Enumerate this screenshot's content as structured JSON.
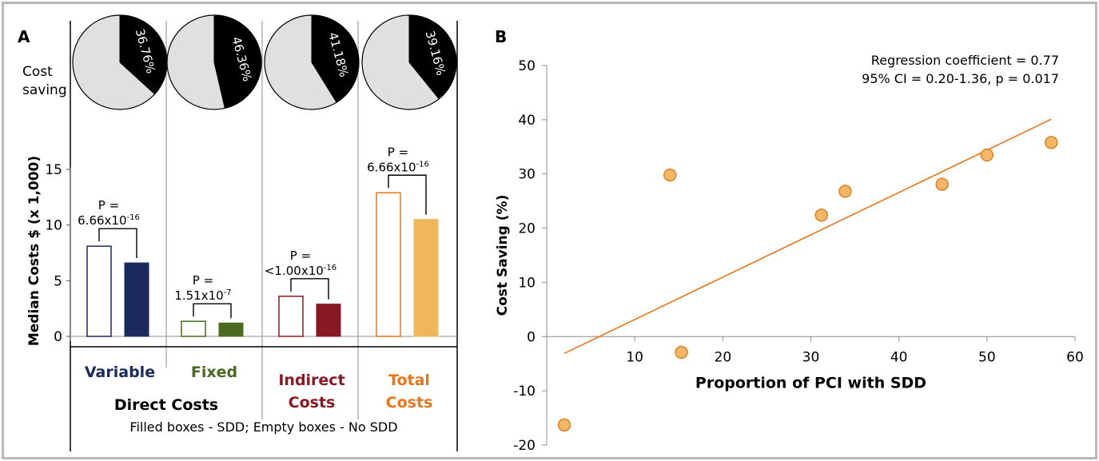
{
  "colors": {
    "variable": "#1b2a5e",
    "fixed": "#4a6b1f",
    "indirect": "#8a1822",
    "total": "#f0b65b",
    "total_label": "#e8751a",
    "pie_light": "#e0e0e0",
    "pie_dark": "#000000",
    "scatter_fill": "#f5b763",
    "scatter_stroke": "#d8832a",
    "trend": "#e8751a",
    "grid": "#8c8c8c"
  },
  "panel_a": {
    "letter": "A",
    "pie_row_label": [
      "Cost",
      "saving"
    ],
    "ylabel": "Median Costs $ (x 1,000)",
    "footnote": "Filled boxes - SDD; Empty boxes - No SDD",
    "direct_costs": "Direct Costs"
  },
  "panel_b": {
    "letter": "B",
    "annotation_line1": "Regression coefficient = 0.77",
    "annotation_line2": "95% CI = 0.20-1.36, p = 0.017"
  },
  "chart_data": [
    {
      "type": "bar",
      "panel": "A",
      "ylabel": "Median Costs $ (x 1,000)",
      "ylim": [
        0,
        15
      ],
      "yticks": [
        0,
        5,
        10,
        15
      ],
      "groups": [
        {
          "label": "Variable",
          "no_sdd": 8.1,
          "sdd": 6.6,
          "p_line1": "P =",
          "p_line2": "6.66x10",
          "p_exp": "-16",
          "pie_pct": 36.76,
          "pie_label": "36.76%",
          "color_key": "variable",
          "empty_outline": "#1b2a5e"
        },
        {
          "label": "Fixed",
          "no_sdd": 1.35,
          "sdd": 1.2,
          "p_line1": "P =",
          "p_line2": "1.51x10",
          "p_exp": "-7",
          "pie_pct": 46.36,
          "pie_label": "46.36%",
          "color_key": "fixed",
          "empty_outline": "#4a6b1f"
        },
        {
          "label": "Indirect",
          "label2": "Costs",
          "no_sdd": 3.6,
          "sdd": 2.9,
          "p_line1": "P =",
          "p_line2": "<1.00x10",
          "p_exp": "-16",
          "pie_pct": 41.18,
          "pie_label": "41.18%",
          "color_key": "indirect",
          "empty_outline": "#8a1822"
        },
        {
          "label": "Total",
          "label2": "Costs",
          "no_sdd": 12.9,
          "sdd": 10.5,
          "p_line1": "P =",
          "p_line2": "6.66x10",
          "p_exp": "-16",
          "pie_pct": 39.16,
          "pie_label": "39.16%",
          "color_key": "total",
          "empty_outline": "#e8751a"
        }
      ],
      "legend_note": "Filled boxes - SDD; Empty boxes - No SDD"
    },
    {
      "type": "scatter",
      "panel": "B",
      "xlabel": "Proportion of PCI with SDD",
      "ylabel": "Cost Saving (%)",
      "xlim": [
        0,
        60
      ],
      "ylim": [
        -20,
        50
      ],
      "xticks": [
        10,
        20,
        30,
        40,
        50,
        60
      ],
      "yticks": [
        -20,
        -10,
        0,
        10,
        20,
        30,
        40,
        50
      ],
      "points": [
        {
          "x": 2,
          "y": -16.3
        },
        {
          "x": 14,
          "y": 29.8
        },
        {
          "x": 15.3,
          "y": -2.9
        },
        {
          "x": 31.2,
          "y": 22.4
        },
        {
          "x": 33.9,
          "y": 26.8
        },
        {
          "x": 44.9,
          "y": 28.1
        },
        {
          "x": 50.0,
          "y": 33.5
        },
        {
          "x": 57.3,
          "y": 35.8
        }
      ],
      "trendline": {
        "x": [
          2,
          57.3
        ],
        "y": [
          -3.1,
          40.1
        ]
      }
    }
  ]
}
